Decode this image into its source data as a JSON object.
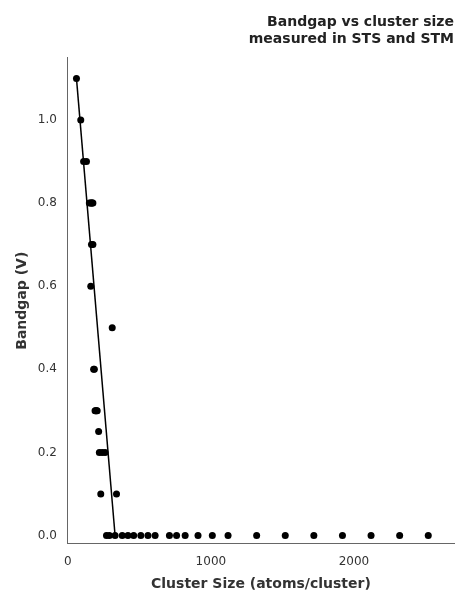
{
  "chart_data": {
    "type": "scatter",
    "title": "Bandgap vs cluster size\nmeasured in STS and STM",
    "xlabel": "Cluster Size (atoms/cluster)",
    "ylabel": "Bandgap (V)",
    "xlim": [
      0,
      2700
    ],
    "ylim": [
      -0.02,
      1.15
    ],
    "xticks": [
      0,
      1000,
      2000
    ],
    "yticks": [
      {
        "value": 0.0,
        "label": "0.0"
      },
      0.2,
      0.4,
      0.6,
      0.8,
      {
        "value": 1.0,
        "label": "1.0"
      }
    ],
    "grid": false,
    "series": [
      {
        "type": "line",
        "color": "#000000",
        "line_style": "solid",
        "x": [
          60,
          330
        ],
        "values": [
          1.1,
          0.0
        ]
      },
      {
        "type": "scatter",
        "color": "#000000",
        "marker": "circle",
        "x": [
          60,
          90,
          110,
          130,
          150,
          160,
          165,
          170,
          175,
          165,
          175,
          160,
          180,
          185,
          190,
          195,
          200,
          205,
          215,
          220,
          230,
          310,
          240,
          260,
          340,
          270,
          290,
          330,
          380,
          420,
          460,
          510,
          560,
          610,
          710,
          760,
          820,
          910,
          1010,
          1120,
          1320,
          1520,
          1720,
          1920,
          2120,
          2320,
          2520
        ],
        "values": [
          1.1,
          1.0,
          0.9,
          0.9,
          0.8,
          0.8,
          0.8,
          0.8,
          0.8,
          0.7,
          0.7,
          0.6,
          0.4,
          0.4,
          0.3,
          0.3,
          0.3,
          0.3,
          0.25,
          0.2,
          0.1,
          0.5,
          0.2,
          0.2,
          0.1,
          0.0,
          0.0,
          0.0,
          0.0,
          0.0,
          0.0,
          0.0,
          0.0,
          0.0,
          0.0,
          0.0,
          0.0,
          0.0,
          0.0,
          0.0,
          0.0,
          0.0,
          0.0,
          0.0,
          0.0,
          0.0,
          0.0
        ]
      }
    ]
  }
}
